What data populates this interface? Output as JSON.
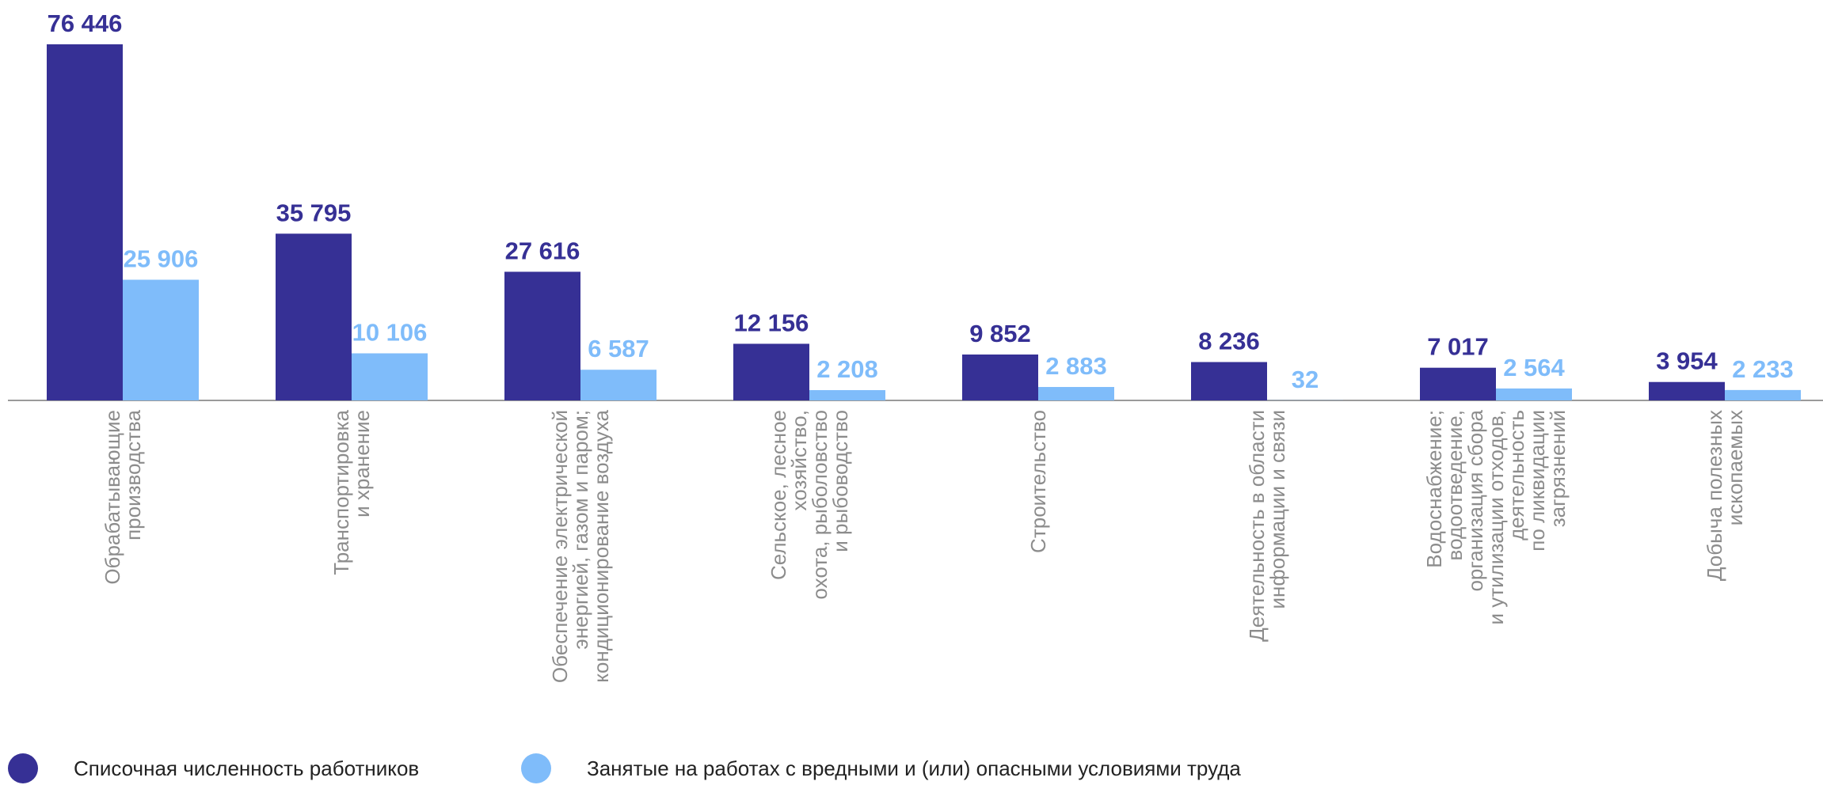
{
  "chart_data": {
    "type": "bar",
    "categories": [
      "Обрабатывающие\nпроизводства",
      "Транспортировка\nи хранение",
      "Обеспечение электрической\nэнергией, газом и паром;\nкондиционирование воздуха",
      "Сельское, лесное\nхозяйство,\nохота, рыболовство\nи рыбоводство",
      "Строительство",
      "Деятельность в области\nинформации и связи",
      "Водоснабжение;\nводоотведение,\nорганизация сбора\nи утилизации отходов,\nдеятельность\nпо ликвидации\nзагрязнений",
      "Добыча полезных\nископаемых"
    ],
    "series": [
      {
        "name": "Списочная численность работников",
        "values": [
          76446,
          35795,
          27616,
          12156,
          9852,
          8236,
          7017,
          3954
        ],
        "labels": [
          "76 446",
          "35 795",
          "27 616",
          "12 156",
          "9 852",
          "8 236",
          "7 017",
          "3 954"
        ],
        "color": "#363095"
      },
      {
        "name": "Занятые на работах с вредными и (или) опасными условиями труда",
        "values": [
          25906,
          10106,
          6587,
          2208,
          2883,
          32,
          2564,
          2233
        ],
        "labels": [
          "25 906",
          "10 106",
          "6 587",
          "2 208",
          "2 883",
          "32",
          "2 564",
          "2 233"
        ],
        "color": "#7fbcfa"
      }
    ],
    "title": "",
    "xlabel": "",
    "ylabel": "",
    "ylim": [
      0,
      76446
    ],
    "grid": false,
    "legend_position": "bottom-left",
    "axis_color": "#9a9a9a",
    "category_label_color": "#8c8c8c"
  },
  "legend": [
    {
      "label": "Списочная численность работников",
      "color": "#363095"
    },
    {
      "label": "Занятые на работах с вредными и (или) опасными условиями труда",
      "color": "#7fbcfa"
    }
  ]
}
